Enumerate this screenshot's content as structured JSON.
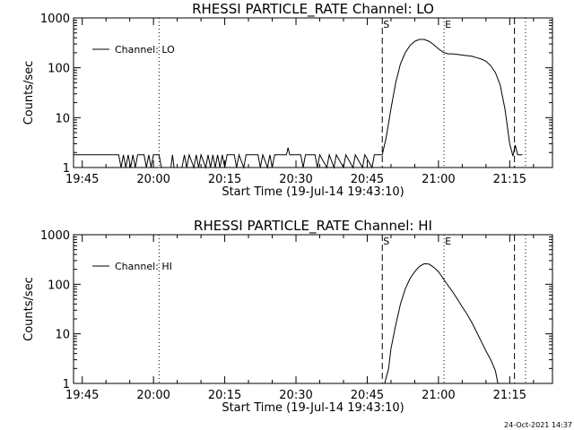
{
  "footer": {
    "timestamp": "24-Oct-2021 14:37"
  },
  "chart_data": [
    {
      "type": "line",
      "title": "RHESSI PARTICLE_RATE Channel: LO",
      "xlabel": "Start Time (19-Jul-14 19:43:10)",
      "ylabel": "Counts/sec",
      "yscale": "log",
      "xlim": [
        "19:43:10",
        "21:24:00"
      ],
      "ylim": [
        1,
        1000
      ],
      "xticks": [
        "19:45",
        "20:00",
        "20:15",
        "20:30",
        "20:45",
        "21:00",
        "21:15"
      ],
      "yticks": [
        "1",
        "10",
        "100",
        "1000"
      ],
      "legend": {
        "position": "top-left",
        "entries": [
          "Channel: LO"
        ]
      },
      "markers": [
        {
          "label": "S",
          "time": "20:48:10",
          "style": "dashed"
        },
        {
          "label": "E",
          "time": "21:01:10",
          "style": "dotted"
        }
      ],
      "extra_lines": [
        {
          "time": "20:01:10",
          "style": "dotted"
        },
        {
          "time": "21:16:00",
          "style": "dashed"
        },
        {
          "time": "21:18:20",
          "style": "dotted"
        }
      ],
      "series": [
        {
          "name": "Channel: LO",
          "points": [
            [
              "19:43:10",
              1.8
            ],
            [
              "19:52:40",
              1.8
            ],
            [
              "19:53:10",
              1
            ],
            [
              "19:53:40",
              1.8
            ],
            [
              "19:54:10",
              1
            ],
            [
              "19:54:40",
              1.8
            ],
            [
              "19:55:10",
              1
            ],
            [
              "19:55:40",
              1.8
            ],
            [
              "19:56:10",
              1
            ],
            [
              "19:56:40",
              1.8
            ],
            [
              "19:58:00",
              1.8
            ],
            [
              "19:58:30",
              1
            ],
            [
              "19:59:00",
              1.8
            ],
            [
              "19:59:30",
              1
            ],
            [
              "20:00:00",
              1.8
            ],
            [
              "20:01:10",
              1.8
            ],
            [
              "20:01:40",
              1
            ],
            [
              "20:03:40",
              1
            ],
            [
              "20:04:00",
              1.8
            ],
            [
              "20:04:20",
              1
            ],
            [
              "20:06:00",
              1
            ],
            [
              "20:06:30",
              1.8
            ],
            [
              "20:07:00",
              1
            ],
            [
              "20:07:30",
              1.8
            ],
            [
              "20:08:30",
              1
            ],
            [
              "20:09:00",
              1.8
            ],
            [
              "20:09:30",
              1
            ],
            [
              "20:10:00",
              1.8
            ],
            [
              "20:11:00",
              1
            ],
            [
              "20:11:30",
              1.8
            ],
            [
              "20:12:00",
              1
            ],
            [
              "20:12:30",
              1.8
            ],
            [
              "20:13:00",
              1
            ],
            [
              "20:13:30",
              1.8
            ],
            [
              "20:14:00",
              1
            ],
            [
              "20:14:30",
              1.8
            ],
            [
              "20:15:00",
              1
            ],
            [
              "20:15:30",
              1.8
            ],
            [
              "20:17:00",
              1.8
            ],
            [
              "20:17:30",
              1
            ],
            [
              "20:18:00",
              1.8
            ],
            [
              "20:19:00",
              1
            ],
            [
              "20:19:30",
              1.8
            ],
            [
              "20:22:00",
              1.8
            ],
            [
              "20:22:30",
              1
            ],
            [
              "20:23:00",
              1.8
            ],
            [
              "20:24:00",
              1
            ],
            [
              "20:24:30",
              1.8
            ],
            [
              "20:25:00",
              1
            ],
            [
              "20:25:30",
              1.8
            ],
            [
              "20:28:00",
              1.8
            ],
            [
              "20:28:20",
              2.5
            ],
            [
              "20:28:40",
              1.8
            ],
            [
              "20:31:00",
              1.8
            ],
            [
              "20:31:30",
              1
            ],
            [
              "20:32:00",
              1.8
            ],
            [
              "20:34:00",
              1.8
            ],
            [
              "20:34:30",
              1
            ],
            [
              "20:35:00",
              1.8
            ],
            [
              "20:36:30",
              1
            ],
            [
              "20:37:00",
              1.8
            ],
            [
              "20:38:00",
              1
            ],
            [
              "20:38:30",
              1.8
            ],
            [
              "20:40:00",
              1
            ],
            [
              "20:40:30",
              1.8
            ],
            [
              "20:42:00",
              1
            ],
            [
              "20:42:30",
              1.8
            ],
            [
              "20:44:00",
              1
            ],
            [
              "20:44:30",
              1.8
            ],
            [
              "20:46:00",
              1
            ],
            [
              "20:46:30",
              1.8
            ],
            [
              "20:48:10",
              1.8
            ],
            [
              "20:49:00",
              4
            ],
            [
              "20:50:00",
              15
            ],
            [
              "20:51:00",
              50
            ],
            [
              "20:52:00",
              120
            ],
            [
              "20:53:00",
              200
            ],
            [
              "20:54:00",
              280
            ],
            [
              "20:55:00",
              340
            ],
            [
              "20:56:00",
              370
            ],
            [
              "20:57:00",
              370
            ],
            [
              "20:58:00",
              340
            ],
            [
              "20:59:00",
              290
            ],
            [
              "21:00:00",
              240
            ],
            [
              "21:01:00",
              205
            ],
            [
              "21:02:00",
              190
            ],
            [
              "21:03:00",
              190
            ],
            [
              "21:04:00",
              185
            ],
            [
              "21:05:00",
              180
            ],
            [
              "21:06:00",
              175
            ],
            [
              "21:07:00",
              170
            ],
            [
              "21:08:00",
              160
            ],
            [
              "21:09:00",
              150
            ],
            [
              "21:10:00",
              135
            ],
            [
              "21:11:00",
              110
            ],
            [
              "21:12:00",
              80
            ],
            [
              "21:13:00",
              45
            ],
            [
              "21:14:00",
              15
            ],
            [
              "21:15:00",
              3
            ],
            [
              "21:15:40",
              1.7
            ],
            [
              "21:16:10",
              2.8
            ],
            [
              "21:16:40",
              1.8
            ],
            [
              "21:17:40",
              1.8
            ]
          ]
        }
      ]
    },
    {
      "type": "line",
      "title": "RHESSI PARTICLE_RATE Channel: HI",
      "xlabel": "Start Time (19-Jul-14 19:43:10)",
      "ylabel": "Counts/sec",
      "yscale": "log",
      "xlim": [
        "19:43:10",
        "21:24:00"
      ],
      "ylim": [
        1,
        1000
      ],
      "xticks": [
        "19:45",
        "20:00",
        "20:15",
        "20:30",
        "20:45",
        "21:00",
        "21:15"
      ],
      "yticks": [
        "1",
        "10",
        "100",
        "1000"
      ],
      "legend": {
        "position": "top-left",
        "entries": [
          "Channel: HI"
        ]
      },
      "markers": [
        {
          "label": "S",
          "time": "20:48:10",
          "style": "dashed"
        },
        {
          "label": "E",
          "time": "21:01:10",
          "style": "dotted"
        }
      ],
      "extra_lines": [
        {
          "time": "20:01:10",
          "style": "dotted"
        },
        {
          "time": "21:16:00",
          "style": "dashed"
        },
        {
          "time": "21:18:20",
          "style": "dotted"
        }
      ],
      "series": [
        {
          "name": "Channel: HI",
          "points": [
            [
              "20:48:40",
              1
            ],
            [
              "20:49:30",
              2
            ],
            [
              "20:50:00",
              5
            ],
            [
              "20:51:00",
              15
            ],
            [
              "20:52:00",
              40
            ],
            [
              "20:53:00",
              80
            ],
            [
              "20:54:00",
              130
            ],
            [
              "20:55:00",
              180
            ],
            [
              "20:56:00",
              230
            ],
            [
              "20:57:00",
              260
            ],
            [
              "20:58:00",
              255
            ],
            [
              "20:59:00",
              220
            ],
            [
              "21:00:00",
              180
            ],
            [
              "21:01:00",
              130
            ],
            [
              "21:02:00",
              95
            ],
            [
              "21:03:00",
              70
            ],
            [
              "21:04:00",
              50
            ],
            [
              "21:05:00",
              35
            ],
            [
              "21:06:00",
              25
            ],
            [
              "21:07:00",
              17
            ],
            [
              "21:08:00",
              11
            ],
            [
              "21:09:00",
              7
            ],
            [
              "21:10:00",
              4.5
            ],
            [
              "21:11:00",
              3
            ],
            [
              "21:12:00",
              1.8
            ],
            [
              "21:12:30",
              1
            ]
          ]
        }
      ]
    }
  ]
}
